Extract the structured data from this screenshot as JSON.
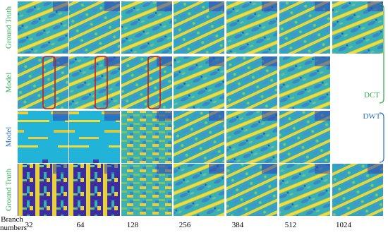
{
  "row_labels": [
    "Ground Truth",
    "Model",
    "Model",
    "Ground Truth"
  ],
  "column_header": "Branch numbers",
  "columns": [
    "32",
    "64",
    "128",
    "256",
    "384",
    "512",
    "1024"
  ],
  "groups": [
    "DCT",
    "DWT"
  ]
}
